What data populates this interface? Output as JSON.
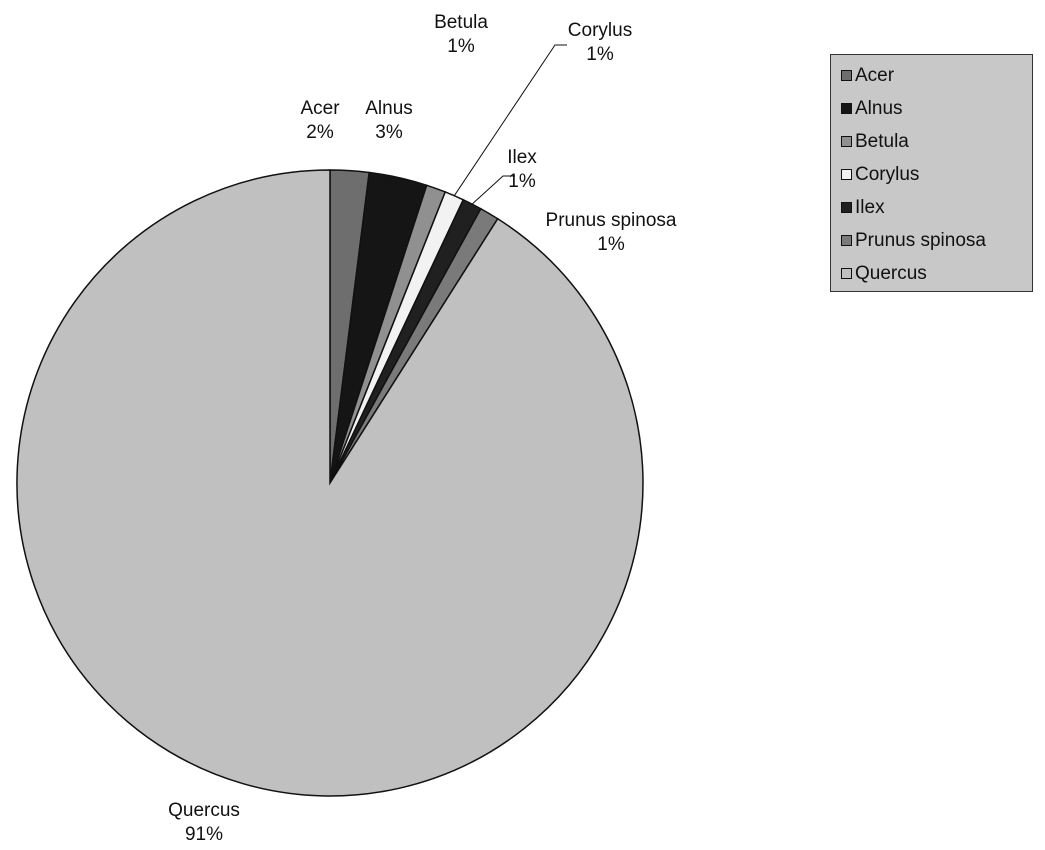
{
  "chart_data": {
    "type": "pie",
    "title": "",
    "categories": [
      "Acer",
      "Alnus",
      "Betula",
      "Corylus",
      "Ilex",
      "Prunus spinosa",
      "Quercus"
    ],
    "values": [
      2,
      3,
      1,
      1,
      1,
      1,
      91
    ],
    "data_labels": [
      "2%",
      "3%",
      "1%",
      "1%",
      "1%",
      "1%",
      "91%"
    ],
    "legend": {
      "placement": "top-right",
      "entries": [
        "Acer",
        "Alnus",
        "Betula",
        "Corylus",
        "Ilex",
        "Prunus spinosa",
        "Quercus"
      ]
    },
    "colors": [
      "#6e6e6e",
      "#151515",
      "#909090",
      "#f2f2f2",
      "#202020",
      "#7a7a7a",
      "#c0c0c0"
    ]
  }
}
